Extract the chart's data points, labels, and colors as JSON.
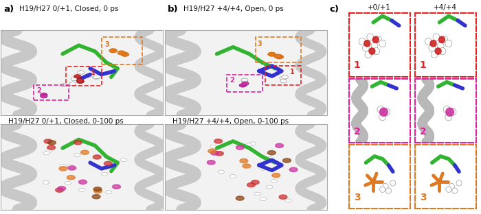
{
  "panel_a_title_top": "H19/H27 0/+1, Closed, 0 ps",
  "panel_a_title_bot": "H19/H27 0/+1, Closed, 0-100 ps",
  "panel_b_title_top": "H19/H27 +4/+4, Open, 0 ps",
  "panel_b_title_bot": "H19/H27 +4/+4, Open, 0-100 ps",
  "panel_c_title": "c)",
  "col1_label": "+0/+1",
  "col2_label": "+4/+4",
  "label_a": "a)",
  "label_b": "b)",
  "row_labels": [
    "1",
    "2",
    "3"
  ],
  "row_colors": [
    "#e82020",
    "#e020a0",
    "#e07820"
  ],
  "bg_white": "#ffffff",
  "annotation_orange": "#e07820",
  "annotation_red": "#e82020",
  "annotation_magenta": "#e020a0",
  "figsize": [
    7.0,
    3.12
  ],
  "dpi": 100,
  "helix_color": "#c8c8c8",
  "green_stick": "#32b432",
  "blue_stick": "#3232cc",
  "red_stick": "#cc3232",
  "orange_stick": "#e07820",
  "magenta_stick": "#cc32a0",
  "brown_stick": "#8B4513",
  "panel_bg": "#f2f2f2",
  "border_color_outer": "#aaaaaa",
  "title_fontsize": 7.5,
  "label_fontsize": 9.5
}
